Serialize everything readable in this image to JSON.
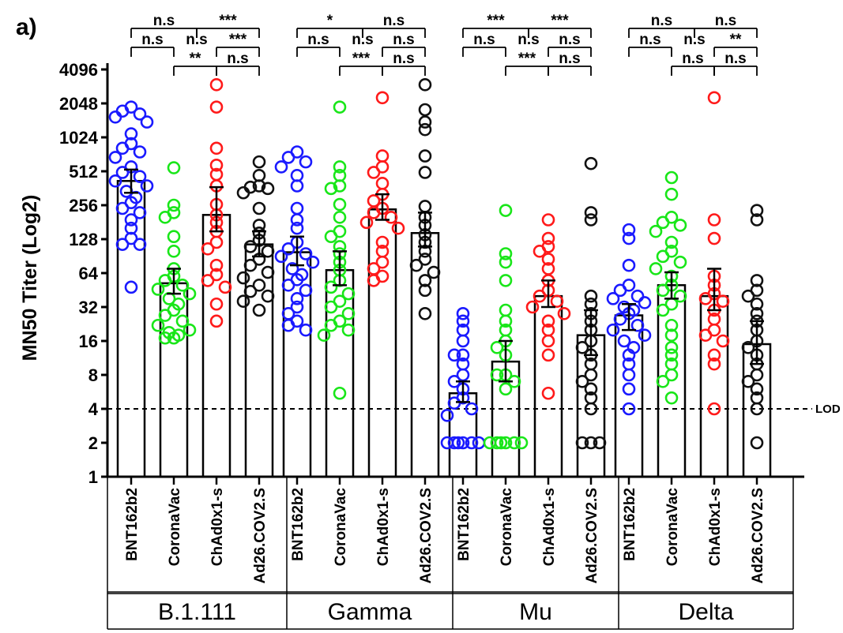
{
  "panel_label": "a)",
  "chart_data": {
    "type": "scatter",
    "ylabel": "MN50 Titer (Log2)",
    "y_scale": "log2",
    "ylim": [
      1,
      4096
    ],
    "yticks": [
      "1",
      "2",
      "4",
      "8",
      "16",
      "32",
      "64",
      "128",
      "256",
      "512",
      "1024",
      "2048",
      "4096"
    ],
    "lod": {
      "label": "LOD",
      "value": 4
    },
    "variants": [
      "B.1.111",
      "Gamma",
      "Mu",
      "Delta"
    ],
    "vaccines": [
      "BNT162b2",
      "CoronaVac",
      "ChAd0x1-s",
      "Ad26.COV2.S"
    ],
    "vaccine_colors": {
      "BNT162b2": "#1a1aff",
      "CoronaVac": "#19e619",
      "ChAd0x1-s": "#ff1a1a",
      "Ad26.COV2.S": "#111111"
    },
    "bars": [
      {
        "variant": "B.1.111",
        "vaccine": "BNT162b2",
        "mean": 420,
        "err_low": 330,
        "err_high": 530,
        "points": [
          1900,
          1750,
          1650,
          1550,
          1400,
          1100,
          900,
          820,
          760,
          680,
          560,
          500,
          460,
          420,
          380,
          340,
          300,
          270,
          240,
          220,
          190,
          160,
          130,
          115,
          115,
          48
        ]
      },
      {
        "variant": "B.1.111",
        "vaccine": "CoronaVac",
        "mean": 52,
        "err_low": 42,
        "err_high": 70,
        "points": [
          550,
          256,
          220,
          200,
          135,
          100,
          70,
          60,
          55,
          50,
          46,
          42,
          38,
          34,
          30,
          27,
          24,
          22,
          20,
          19,
          18,
          17,
          17
        ]
      },
      {
        "variant": "B.1.111",
        "vaccine": "ChAd0x1-s",
        "mean": 210,
        "err_low": 150,
        "err_high": 370,
        "points": [
          3000,
          1900,
          820,
          580,
          480,
          380,
          260,
          210,
          180,
          150,
          120,
          105,
          75,
          62,
          55,
          48,
          34,
          24
        ]
      },
      {
        "variant": "B.1.111",
        "vaccine": "Ad26.COV2.S",
        "mean": 115,
        "err_low": 90,
        "err_high": 150,
        "points": [
          620,
          470,
          380,
          370,
          360,
          330,
          240,
          170,
          145,
          125,
          110,
          100,
          85,
          75,
          65,
          58,
          50,
          44,
          40,
          36,
          30
        ]
      },
      {
        "variant": "Gamma",
        "vaccine": "BNT162b2",
        "mean": 98,
        "err_low": 75,
        "err_high": 135,
        "points": [
          760,
          680,
          620,
          560,
          470,
          380,
          240,
          190,
          160,
          120,
          105,
          95,
          90,
          80,
          70,
          62,
          56,
          50,
          45,
          38,
          32,
          28,
          24,
          22,
          20
        ]
      },
      {
        "variant": "Gamma",
        "vaccine": "CoronaVac",
        "mean": 68,
        "err_low": 50,
        "err_high": 100,
        "points": [
          1900,
          560,
          470,
          380,
          360,
          260,
          200,
          150,
          135,
          110,
          95,
          80,
          68,
          55,
          48,
          42,
          36,
          32,
          28,
          24,
          22,
          20,
          18,
          5.5
        ]
      },
      {
        "variant": "Gamma",
        "vaccine": "ChAd0x1-s",
        "mean": 235,
        "err_low": 190,
        "err_high": 320,
        "points": [
          2300,
          700,
          560,
          500,
          400,
          320,
          280,
          240,
          220,
          200,
          180,
          160,
          120,
          100,
          80,
          70,
          60,
          55
        ]
      },
      {
        "variant": "Gamma",
        "vaccine": "Ad26.COV2.S",
        "mean": 145,
        "err_low": 110,
        "err_high": 220,
        "points": [
          3000,
          1800,
          1400,
          1200,
          700,
          500,
          250,
          200,
          170,
          140,
          120,
          100,
          85,
          75,
          65,
          55,
          45,
          28
        ]
      },
      {
        "variant": "Mu",
        "vaccine": "BNT162b2",
        "mean": 5.5,
        "err_low": 4.6,
        "err_high": 7,
        "points": [
          28,
          24,
          20,
          16,
          12,
          12,
          10,
          8,
          7,
          6,
          5,
          4.5,
          4,
          3.5,
          2,
          2,
          2,
          2,
          2,
          2
        ]
      },
      {
        "variant": "Mu",
        "vaccine": "CoronaVac",
        "mean": 10.5,
        "err_low": 7,
        "err_high": 16,
        "points": [
          230,
          95,
          80,
          55,
          30,
          24,
          20,
          16,
          14,
          12,
          8,
          8,
          7,
          6,
          2,
          2,
          2,
          2,
          2,
          2
        ]
      },
      {
        "variant": "Mu",
        "vaccine": "ChAd0x1-s",
        "mean": 40,
        "err_low": 32,
        "err_high": 55,
        "points": [
          190,
          130,
          110,
          100,
          85,
          70,
          55,
          45,
          40,
          36,
          32,
          28,
          24,
          20,
          16,
          12,
          5.5
        ]
      },
      {
        "variant": "Mu",
        "vaccine": "Ad26.COV2.S",
        "mean": 18,
        "err_low": 12,
        "err_high": 30,
        "points": [
          600,
          220,
          190,
          40,
          34,
          28,
          24,
          20,
          16,
          14,
          12,
          10,
          8,
          7,
          6,
          5,
          4,
          2,
          2,
          2
        ]
      },
      {
        "variant": "Delta",
        "vaccine": "BNT162b2",
        "mean": 27,
        "err_low": 20,
        "err_high": 34,
        "points": [
          155,
          130,
          75,
          50,
          45,
          40,
          38,
          35,
          32,
          30,
          28,
          25,
          22,
          20,
          18,
          16,
          14,
          12,
          10,
          8,
          6,
          4
        ]
      },
      {
        "variant": "Delta",
        "vaccine": "CoronaVac",
        "mean": 50,
        "err_low": 38,
        "err_high": 65,
        "points": [
          450,
          320,
          200,
          180,
          170,
          150,
          120,
          100,
          90,
          80,
          70,
          60,
          50,
          45,
          40,
          34,
          30,
          22,
          18,
          14,
          12,
          10,
          8,
          7,
          5
        ]
      },
      {
        "variant": "Delta",
        "vaccine": "ChAd0x1-s",
        "mean": 40,
        "err_low": 30,
        "err_high": 70,
        "points": [
          2300,
          190,
          130,
          60,
          50,
          42,
          38,
          36,
          30,
          25,
          20,
          18,
          16,
          12,
          10,
          4
        ]
      },
      {
        "variant": "Delta",
        "vaccine": "Ad26.COV2.S",
        "mean": 15,
        "err_low": 10,
        "err_high": 24,
        "points": [
          230,
          190,
          55,
          45,
          40,
          34,
          28,
          24,
          20,
          16,
          14,
          12,
          10,
          8,
          7,
          6,
          5,
          4,
          2
        ]
      }
    ],
    "significance": [
      [
        "n.s",
        "***",
        "n.s",
        "***",
        "n.s",
        "**",
        "n.s"
      ],
      [
        "*",
        "n.s",
        "n.s",
        "n.s",
        "n.s",
        "***",
        "n.s"
      ],
      [
        "***",
        "***",
        "n.s",
        "n.s",
        "n.s",
        "***",
        "n.s"
      ],
      [
        "n.s",
        "n.s",
        "n.s",
        "**",
        "n.s",
        "n.s",
        "n.s"
      ]
    ]
  }
}
